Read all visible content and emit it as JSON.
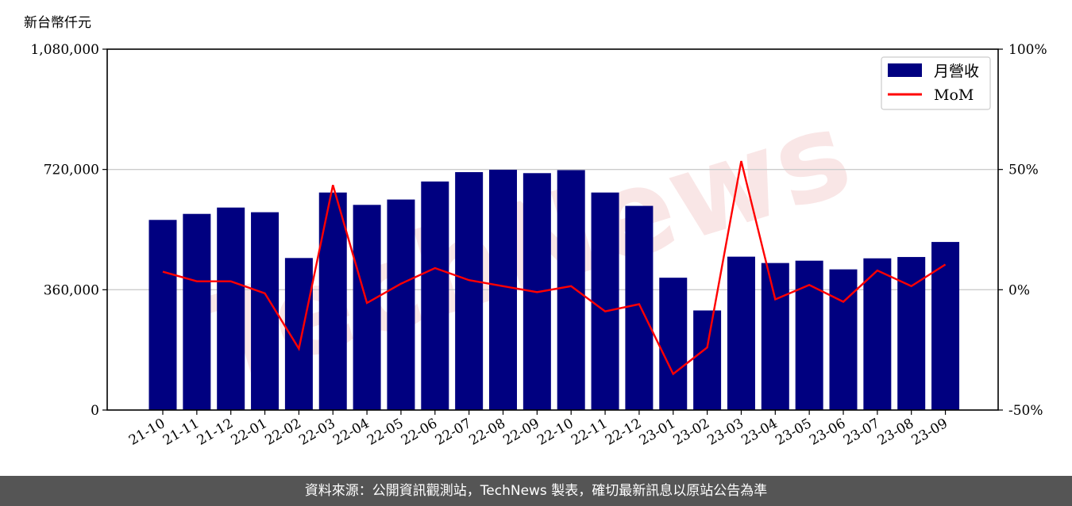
{
  "unit_label": "新台幣仟元",
  "watermark": "TechNews",
  "footer_text": "資料來源：公開資訊觀測站，TechNews 製表，確切最新訊息以原站公告為準",
  "colors": {
    "bar": "#000080",
    "line": "#ff0000",
    "grid": "#cccccc",
    "footer_bg": "#555555",
    "watermark": "#f2c8c8"
  },
  "chart_data": {
    "type": "bar",
    "categories": [
      "21-10",
      "21-11",
      "21-12",
      "22-01",
      "22-02",
      "22-03",
      "22-04",
      "22-05",
      "22-06",
      "22-07",
      "22-08",
      "22-09",
      "22-10",
      "22-11",
      "22-12",
      "23-01",
      "23-02",
      "23-03",
      "23-04",
      "23-05",
      "23-06",
      "23-07",
      "23-08",
      "23-09"
    ],
    "series": [
      {
        "name": "月營收",
        "type": "bar",
        "axis": "left",
        "values": [
          569000,
          587000,
          606000,
          592000,
          455000,
          651000,
          614000,
          630000,
          684000,
          712000,
          719000,
          709000,
          718000,
          651000,
          611000,
          396000,
          298000,
          459000,
          440000,
          447000,
          421000,
          454000,
          458000,
          503000
        ]
      },
      {
        "name": "MoM",
        "type": "line",
        "axis": "right",
        "values": [
          7.5,
          3.5,
          3.5,
          -1.5,
          -24.5,
          43.5,
          -5.5,
          2.5,
          9.0,
          4.0,
          1.5,
          -1.0,
          1.5,
          -9.0,
          -6.0,
          -35.0,
          -24.0,
          53.5,
          -4.0,
          2.0,
          -5.0,
          8.0,
          1.5,
          10.5
        ]
      }
    ],
    "yticks_left": [
      "0",
      "360,000",
      "720,000",
      "1,080,000"
    ],
    "yticks_right": [
      "-50%",
      "0%",
      "50%",
      "100%"
    ],
    "ylim_left": [
      0,
      1080000
    ],
    "ylim_right": [
      -50,
      100
    ],
    "grid": "horizontal",
    "legend": "top-right"
  }
}
